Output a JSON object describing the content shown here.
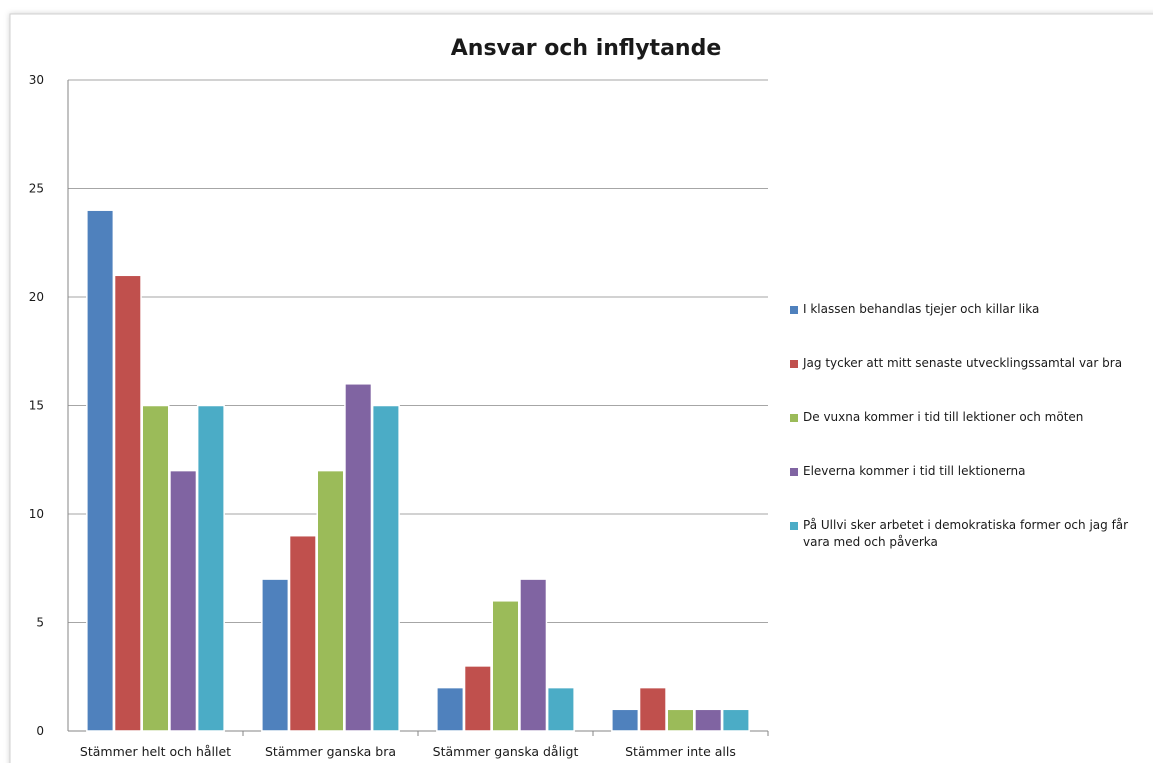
{
  "chart_data": {
    "type": "bar",
    "title": "Ansvar och inflytande",
    "categories": [
      "Stämmer helt och hållet",
      "Stämmer ganska bra",
      "Stämmer ganska dåligt",
      "Stämmer inte alls"
    ],
    "series": [
      {
        "name": "I klassen behandlas tjejer och killar lika",
        "color": "#4f81bd",
        "values": [
          24,
          7,
          2,
          1
        ]
      },
      {
        "name": "Jag tycker att mitt senaste utvecklingssamtal var bra",
        "color": "#c0504d",
        "values": [
          21,
          9,
          3,
          2
        ]
      },
      {
        "name": "De vuxna kommer i tid till lektioner och möten",
        "color": "#9bbb59",
        "values": [
          15,
          12,
          6,
          1
        ]
      },
      {
        "name": "Eleverna kommer i tid till lektionerna",
        "color": "#8064a2",
        "values": [
          12,
          16,
          7,
          1
        ]
      },
      {
        "name": "På Ullvi sker arbetet i demokratiska former och jag får vara med och påverka",
        "color": "#4bacc6",
        "values": [
          15,
          15,
          2,
          1
        ]
      }
    ],
    "ylim": [
      0,
      30
    ],
    "yticks": [
      0,
      5,
      10,
      15,
      20,
      25,
      30
    ],
    "grid": true,
    "legend": "right"
  }
}
